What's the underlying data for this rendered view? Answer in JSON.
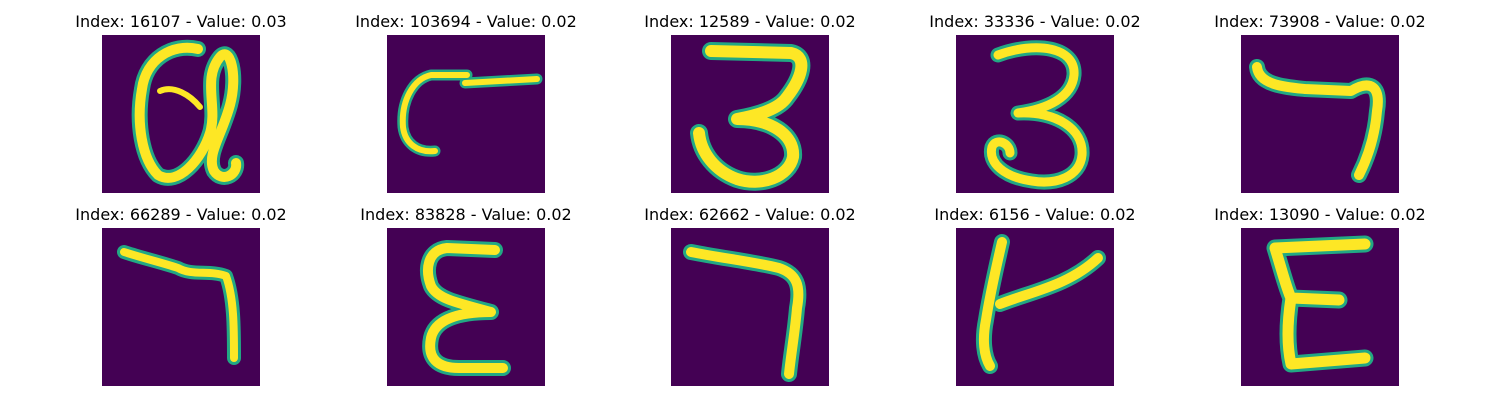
{
  "panels": [
    {
      "title": "Index: 16107 - Value: 0.03",
      "glyph": "scribbled-a-shape"
    },
    {
      "title": "Index: 103694 - Value: 0.02",
      "glyph": "horizontal-stroke-with-curl"
    },
    {
      "title": "Index: 12589 - Value: 0.02",
      "glyph": "digit-3"
    },
    {
      "title": "Index: 33336 - Value: 0.02",
      "glyph": "digit-3"
    },
    {
      "title": "Index: 73908 - Value: 0.02",
      "glyph": "digit-7-like"
    },
    {
      "title": "Index: 66289 - Value: 0.02",
      "glyph": "digit-7-like"
    },
    {
      "title": "Index: 83828 - Value: 0.02",
      "glyph": "letter-e-like"
    },
    {
      "title": "Index: 62662 - Value: 0.02",
      "glyph": "digit-7-like"
    },
    {
      "title": "Index: 6156 - Value: 0.02",
      "glyph": "letter-t-like"
    },
    {
      "title": "Index: 13090 - Value: 0.02",
      "glyph": "letter-e-like"
    }
  ],
  "colors": {
    "background": "#440154",
    "stroke_core": "#fde725",
    "stroke_edge": "#22a884"
  }
}
